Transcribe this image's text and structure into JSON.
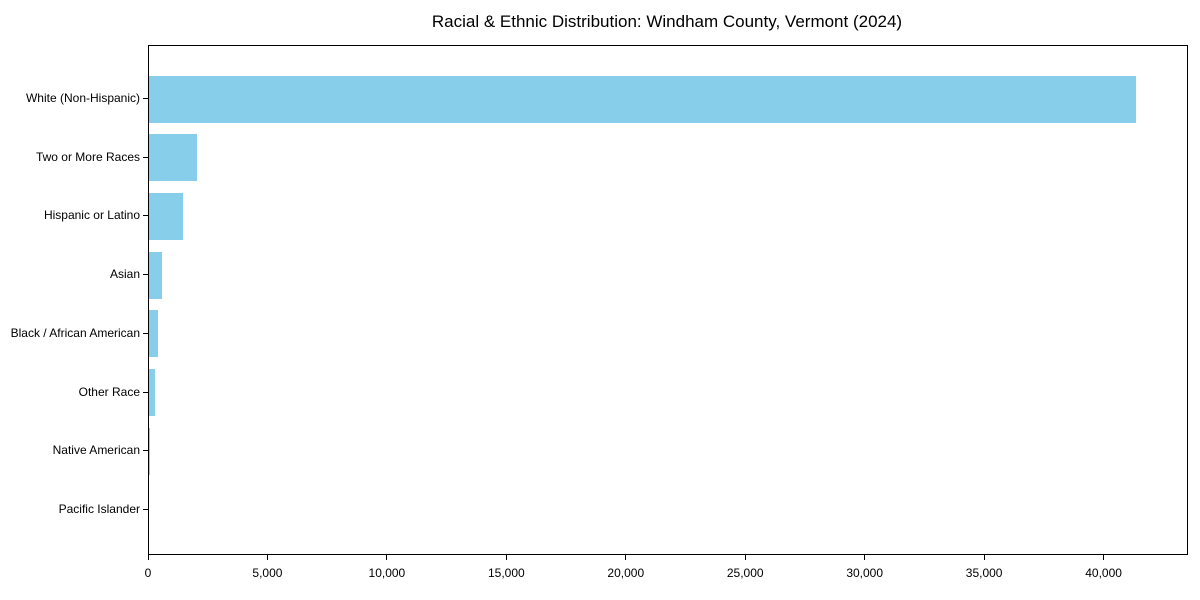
{
  "chart_data": {
    "type": "bar",
    "orientation": "horizontal",
    "title": "Racial & Ethnic Distribution: Windham County, Vermont (2024)",
    "categories": [
      "White (Non-Hispanic)",
      "Two or More Races",
      "Hispanic or Latino",
      "Asian",
      "Black / African American",
      "Other Race",
      "Native American",
      "Pacific Islander"
    ],
    "values": [
      41300,
      2000,
      1430,
      560,
      380,
      250,
      50,
      10
    ],
    "bar_color": "#87CEEB",
    "xlabel": "",
    "ylabel": "",
    "xlim": [
      0,
      43450
    ],
    "x_ticks": [
      {
        "value": 0,
        "label": "0"
      },
      {
        "value": 5000,
        "label": "5,000"
      },
      {
        "value": 10000,
        "label": "10,000"
      },
      {
        "value": 15000,
        "label": "15,000"
      },
      {
        "value": 20000,
        "label": "20,000"
      },
      {
        "value": 25000,
        "label": "25,000"
      },
      {
        "value": 30000,
        "label": "30,000"
      },
      {
        "value": 35000,
        "label": "35,000"
      },
      {
        "value": 40000,
        "label": "40,000"
      }
    ],
    "grid": false,
    "legend": "none",
    "text_color": "#000000",
    "axis_color": "#000000",
    "background_color": "#ffffff"
  }
}
